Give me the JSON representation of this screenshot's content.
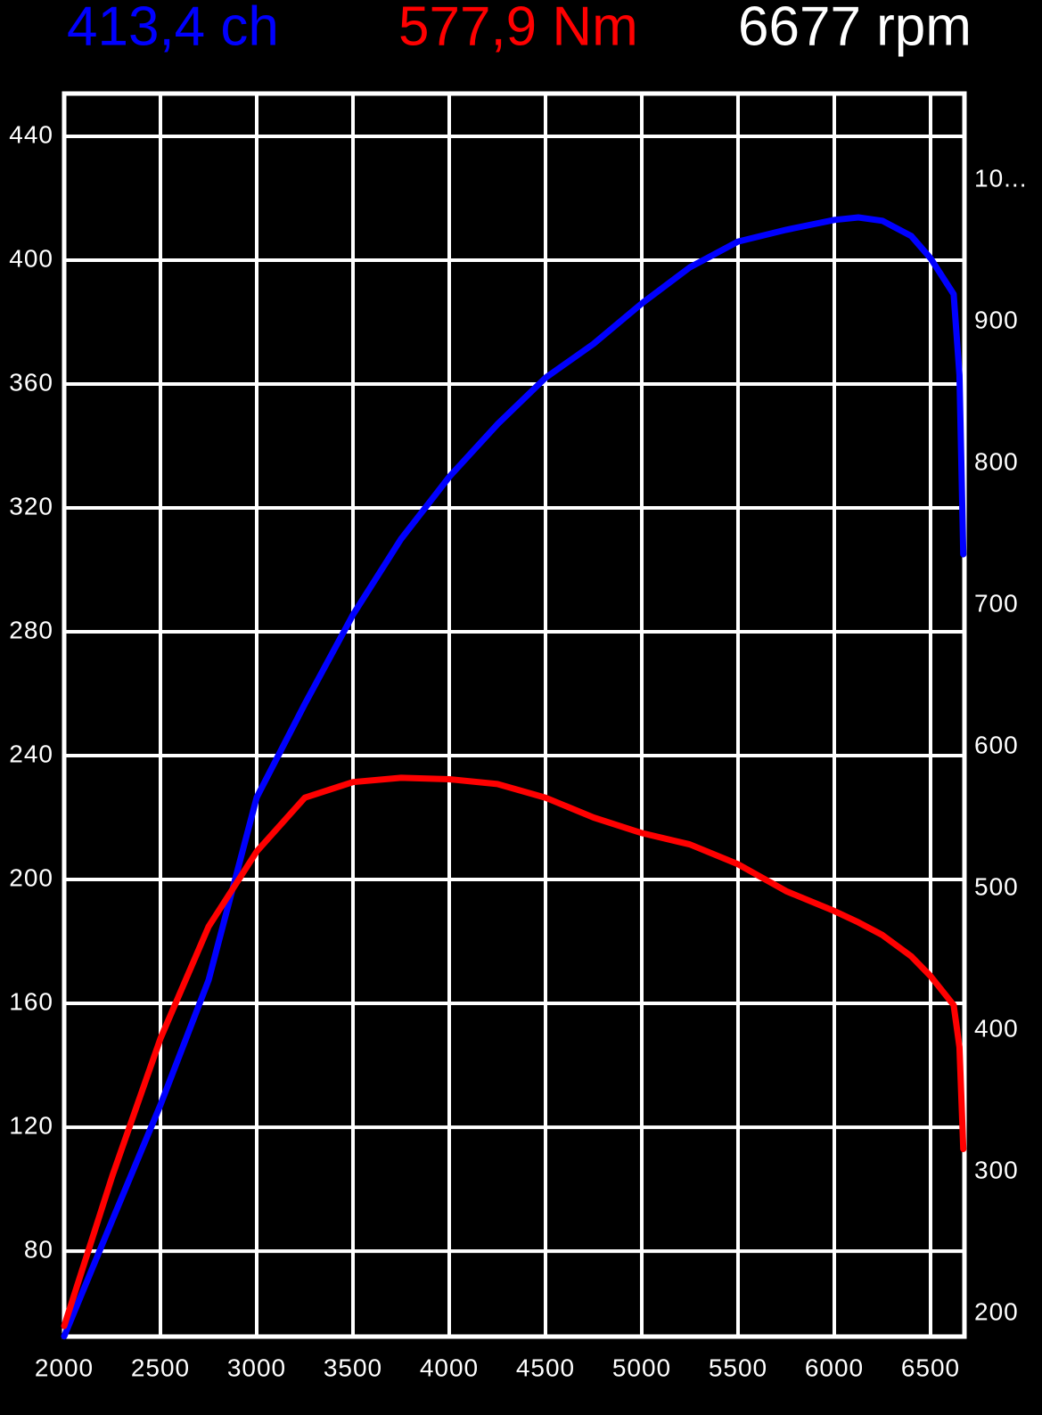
{
  "chart_data": {
    "type": "line",
    "readouts": [
      {
        "text": "413,4 ch",
        "color": "#0000ff"
      },
      {
        "text": "577,9 Nm",
        "color": "#ff0000"
      },
      {
        "text": "6677 rpm",
        "color": "#ffffff"
      }
    ],
    "x": [
      2000,
      2250,
      2500,
      2750,
      3000,
      3250,
      3500,
      3750,
      4000,
      4250,
      4500,
      4750,
      5000,
      5250,
      5500,
      5750,
      6000,
      6125,
      6250,
      6400,
      6500,
      6620,
      6650,
      6670
    ],
    "series": [
      {
        "color": "#0000ff",
        "values": [
          52.5,
          90,
          127.2,
          167.5,
          226.5,
          256.7,
          285.5,
          310,
          330,
          347,
          362,
          373,
          386,
          397.7,
          406,
          409.8,
          413,
          413.8,
          412.7,
          407.8,
          400.6,
          389,
          363,
          305
        ]
      },
      {
        "color": "#ff0000",
        "axis": "y2",
        "values": [
          191,
          297,
          394,
          473,
          526,
          564,
          575,
          578,
          577,
          573.6,
          564,
          550,
          539,
          531,
          517,
          498,
          484,
          476,
          467,
          452,
          438,
          417.6,
          388,
          316
        ]
      }
    ],
    "xlim": [
      2000,
      6676
    ],
    "xticks": [
      2000,
      2500,
      3000,
      3500,
      4000,
      4500,
      5000,
      5500,
      6000,
      6500
    ],
    "ylim": [
      52.4,
      453.8
    ],
    "yticks": [
      80,
      120,
      160,
      200,
      240,
      280,
      320,
      360,
      400,
      440
    ],
    "y2lim": [
      183.6,
      1061
    ],
    "y2ticks": [
      200,
      300,
      400,
      500,
      600,
      700,
      800,
      900,
      {
        "value": 1000,
        "label": "10..."
      }
    ],
    "grid": true
  }
}
